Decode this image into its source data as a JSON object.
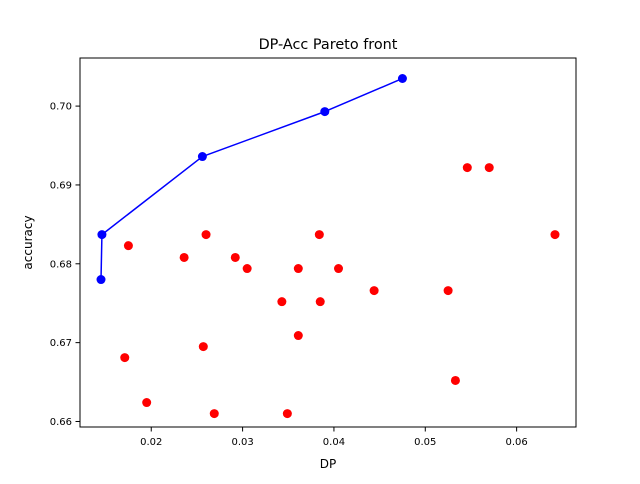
{
  "chart_data": {
    "type": "scatter",
    "title": "DP-Acc Pareto front",
    "xlabel": "DP",
    "ylabel": "accuracy",
    "xlim": [
      0.0122,
      0.0665
    ],
    "ylim": [
      0.6593,
      0.7061
    ],
    "xticks": [
      {
        "value": 0.02,
        "label": "0.02"
      },
      {
        "value": 0.03,
        "label": "0.03"
      },
      {
        "value": 0.04,
        "label": "0.04"
      },
      {
        "value": 0.05,
        "label": "0.05"
      },
      {
        "value": 0.06,
        "label": "0.06"
      }
    ],
    "yticks": [
      {
        "value": 0.66,
        "label": "0.66"
      },
      {
        "value": 0.67,
        "label": "0.67"
      },
      {
        "value": 0.68,
        "label": "0.68"
      },
      {
        "value": 0.69,
        "label": "0.69"
      },
      {
        "value": 0.7,
        "label": "0.70"
      }
    ],
    "grid": false,
    "legend": "none",
    "series": [
      {
        "kind": "scatter",
        "color": "#ff0000",
        "points": [
          {
            "x": 0.0175,
            "y": 0.6823
          },
          {
            "x": 0.0236,
            "y": 0.6808
          },
          {
            "x": 0.026,
            "y": 0.6837
          },
          {
            "x": 0.0292,
            "y": 0.6808
          },
          {
            "x": 0.0305,
            "y": 0.6794
          },
          {
            "x": 0.0361,
            "y": 0.6794
          },
          {
            "x": 0.0384,
            "y": 0.6837
          },
          {
            "x": 0.0405,
            "y": 0.6794
          },
          {
            "x": 0.0343,
            "y": 0.6752
          },
          {
            "x": 0.0385,
            "y": 0.6752
          },
          {
            "x": 0.0444,
            "y": 0.6766
          },
          {
            "x": 0.0525,
            "y": 0.6766
          },
          {
            "x": 0.0546,
            "y": 0.6922
          },
          {
            "x": 0.057,
            "y": 0.6922
          },
          {
            "x": 0.0642,
            "y": 0.6837
          },
          {
            "x": 0.0171,
            "y": 0.6681
          },
          {
            "x": 0.0257,
            "y": 0.6695
          },
          {
            "x": 0.0361,
            "y": 0.6709
          },
          {
            "x": 0.0195,
            "y": 0.6624
          },
          {
            "x": 0.0269,
            "y": 0.661
          },
          {
            "x": 0.0349,
            "y": 0.661
          },
          {
            "x": 0.0533,
            "y": 0.6652
          }
        ]
      },
      {
        "kind": "line-markers",
        "color": "#0000ff",
        "points": [
          {
            "x": 0.0145,
            "y": 0.678
          },
          {
            "x": 0.0146,
            "y": 0.6837
          },
          {
            "x": 0.0256,
            "y": 0.6936
          },
          {
            "x": 0.039,
            "y": 0.6993
          },
          {
            "x": 0.0475,
            "y": 0.7035
          }
        ]
      }
    ]
  }
}
